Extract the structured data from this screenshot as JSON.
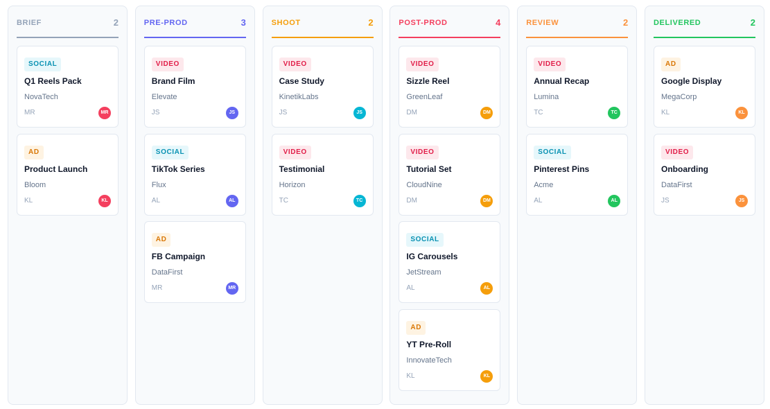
{
  "columns": [
    {
      "title": "BRIEF",
      "count": "2",
      "color": "#94a3b8",
      "cards": [
        {
          "tag": "SOCIAL",
          "type": "social",
          "title": "Q1 Reels Pack",
          "client": "NovaTech",
          "initials": "MR",
          "avatar": "MR",
          "avatar_color": "red"
        },
        {
          "tag": "AD",
          "type": "ad",
          "title": "Product Launch",
          "client": "Bloom",
          "initials": "KL",
          "avatar": "KL",
          "avatar_color": "red"
        }
      ]
    },
    {
      "title": "PRE-PROD",
      "count": "3",
      "color": "#6366f1",
      "cards": [
        {
          "tag": "VIDEO",
          "type": "video",
          "title": "Brand Film",
          "client": "Elevate",
          "initials": "JS",
          "avatar": "JS",
          "avatar_color": "indigo"
        },
        {
          "tag": "SOCIAL",
          "type": "social",
          "title": "TikTok Series",
          "client": "Flux",
          "initials": "AL",
          "avatar": "AL",
          "avatar_color": "indigo"
        },
        {
          "tag": "AD",
          "type": "ad",
          "title": "FB Campaign",
          "client": "DataFirst",
          "initials": "MR",
          "avatar": "MR",
          "avatar_color": "indigo"
        }
      ]
    },
    {
      "title": "SHOOT",
      "count": "2",
      "color": "#f59e0b",
      "cards": [
        {
          "tag": "VIDEO",
          "type": "video",
          "title": "Case Study",
          "client": "KinetikLabs",
          "initials": "JS",
          "avatar": "JS",
          "avatar_color": "cyan"
        },
        {
          "tag": "VIDEO",
          "type": "video",
          "title": "Testimonial",
          "client": "Horizon",
          "initials": "TC",
          "avatar": "TC",
          "avatar_color": "cyan"
        }
      ]
    },
    {
      "title": "POST-PROD",
      "count": "4",
      "color": "#f43f5e",
      "cards": [
        {
          "tag": "VIDEO",
          "type": "video",
          "title": "Sizzle Reel",
          "client": "GreenLeaf",
          "initials": "DM",
          "avatar": "DM",
          "avatar_color": "amber"
        },
        {
          "tag": "VIDEO",
          "type": "video",
          "title": "Tutorial Set",
          "client": "CloudNine",
          "initials": "DM",
          "avatar": "DM",
          "avatar_color": "amber"
        },
        {
          "tag": "SOCIAL",
          "type": "social",
          "title": "IG Carousels",
          "client": "JetStream",
          "initials": "AL",
          "avatar": "AL",
          "avatar_color": "amber"
        },
        {
          "tag": "AD",
          "type": "ad",
          "title": "YT Pre-Roll",
          "client": "InnovateTech",
          "initials": "KL",
          "avatar": "KL",
          "avatar_color": "amber"
        }
      ]
    },
    {
      "title": "REVIEW",
      "count": "2",
      "color": "#fb923c",
      "cards": [
        {
          "tag": "VIDEO",
          "type": "video",
          "title": "Annual Recap",
          "client": "Lumina",
          "initials": "TC",
          "avatar": "TC",
          "avatar_color": "green"
        },
        {
          "tag": "SOCIAL",
          "type": "social",
          "title": "Pinterest Pins",
          "client": "Acme",
          "initials": "AL",
          "avatar": "AL",
          "avatar_color": "green"
        }
      ]
    },
    {
      "title": "DELIVERED",
      "count": "2",
      "color": "#22c55e",
      "cards": [
        {
          "tag": "AD",
          "type": "ad",
          "title": "Google Display",
          "client": "MegaCorp",
          "initials": "KL",
          "avatar": "KL",
          "avatar_color": "orange"
        },
        {
          "tag": "VIDEO",
          "type": "video",
          "title": "Onboarding",
          "client": "DataFirst",
          "initials": "JS",
          "avatar": "JS",
          "avatar_color": "orange"
        }
      ]
    }
  ]
}
